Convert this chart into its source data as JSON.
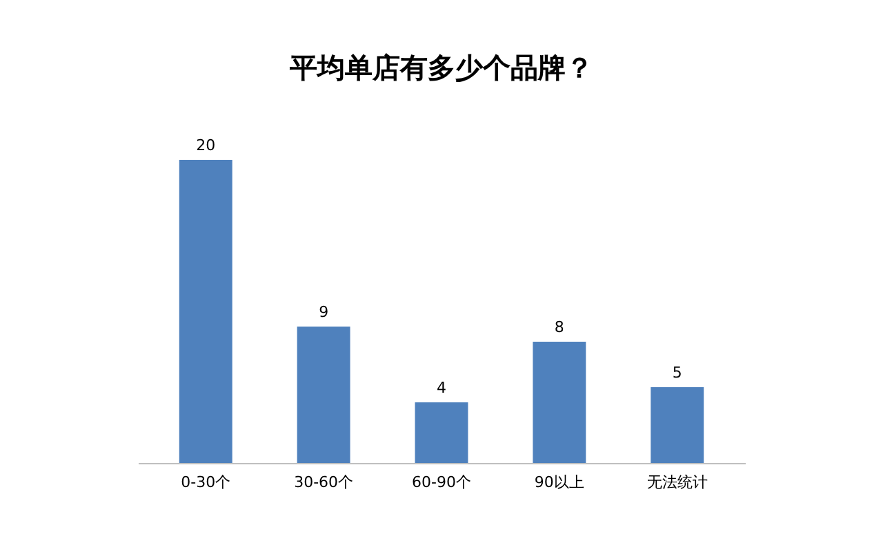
{
  "chart_data": {
    "type": "bar",
    "title": "平均单店有多少个品牌？",
    "categories": [
      "0-30个",
      "30-60个",
      "60-90个",
      "90以上",
      "无法统计"
    ],
    "values": [
      20,
      9,
      4,
      8,
      5
    ],
    "color": "#4f81bd",
    "data_labels": true
  }
}
